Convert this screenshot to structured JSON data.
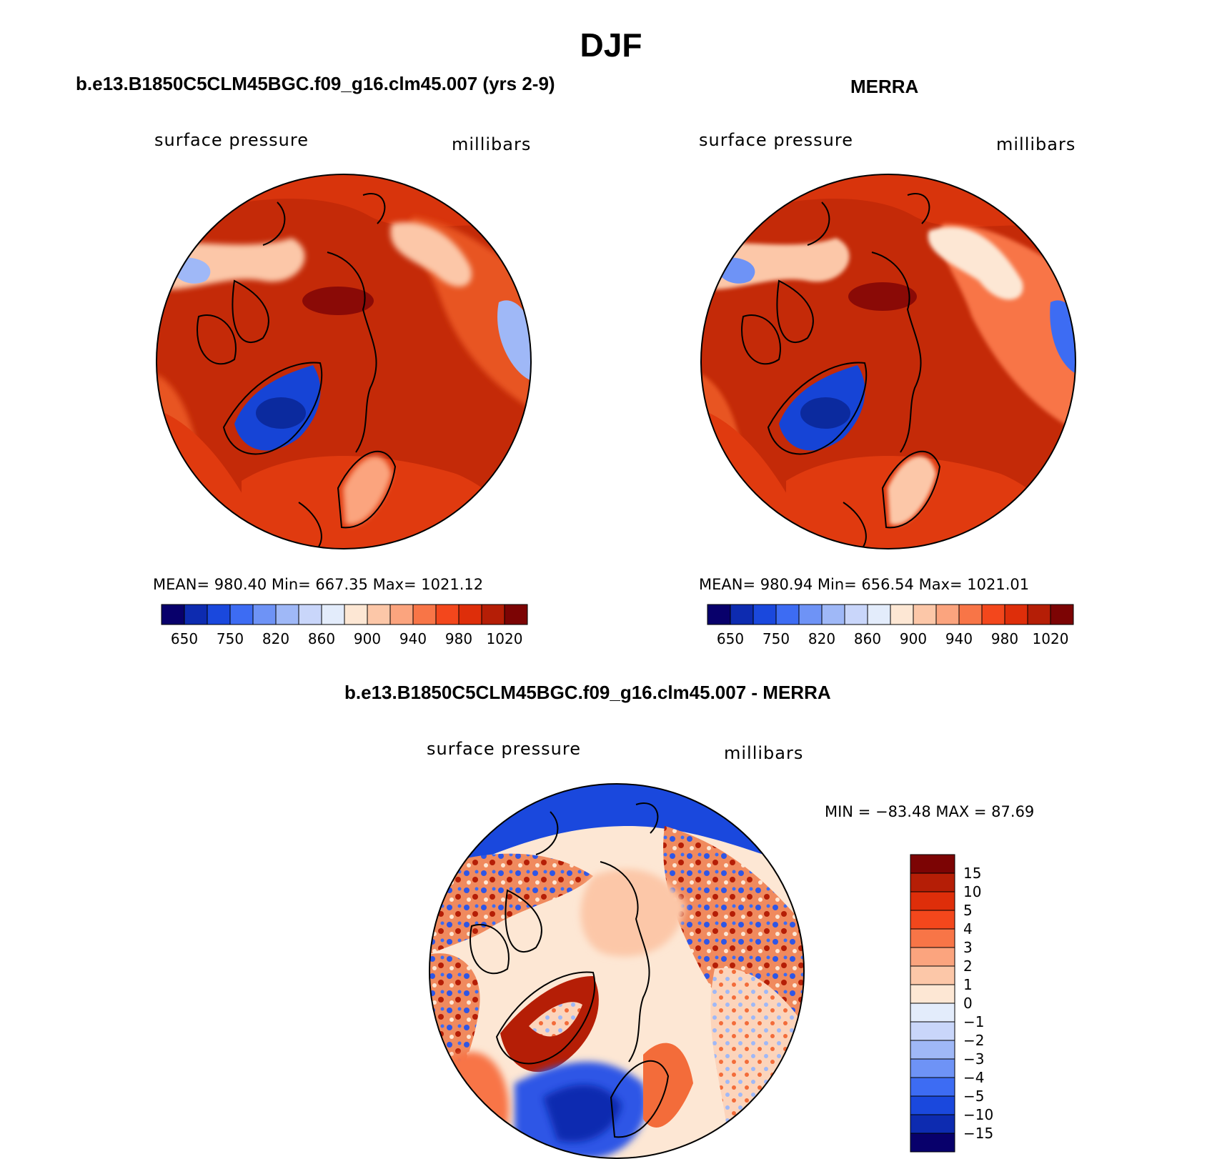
{
  "figure": {
    "title": "DJF",
    "panels": [
      {
        "title": "b.e13.B1850C5CLM45BGC.f09_g16.clm45.007 (yrs 2-9)",
        "left_label": "surface pressure",
        "right_label": "millibars",
        "stats": "MEAN= 980.40   Min= 667.35   Max= 1021.12"
      },
      {
        "title": "MERRA",
        "left_label": "surface pressure",
        "right_label": "millibars",
        "stats": "MEAN= 980.94   Min= 656.54   Max= 1021.01"
      },
      {
        "title": "b.e13.B1850C5CLM45BGC.f09_g16.clm45.007 - MERRA",
        "left_label": "surface pressure",
        "right_label": "millibars",
        "stats": "MIN = −83.48 MAX =   87.69"
      }
    ],
    "abs_colorbar": {
      "colors": [
        "#08006b",
        "#0d2bb0",
        "#1a48dd",
        "#3d6cf3",
        "#6e93f6",
        "#9fb8f7",
        "#c9d6fa",
        "#e3ecfb",
        "#fde7d4",
        "#fcc7a8",
        "#fba47e",
        "#f87547",
        "#f3471c",
        "#de2e0a",
        "#b51e06",
        "#7c0404"
      ],
      "tick_labels": [
        "650",
        "750",
        "820",
        "860",
        "900",
        "940",
        "980",
        "1020"
      ]
    },
    "diff_colorbar": {
      "colors": [
        "#7c0404",
        "#b51e06",
        "#de2e0a",
        "#f3471c",
        "#f87547",
        "#fba47e",
        "#fcc7a8",
        "#fde7d4",
        "#e3ecfb",
        "#c9d6fa",
        "#9fb8f7",
        "#6e93f6",
        "#3d6cf3",
        "#1a48dd",
        "#0d2bb0",
        "#08006b"
      ],
      "tick_labels": [
        "15",
        "10",
        "5",
        "4",
        "3",
        "2",
        "1",
        "0",
        "−1",
        "−2",
        "−3",
        "−4",
        "−5",
        "−10",
        "−15"
      ]
    },
    "map_colors": {
      "background_high": "#c42a08",
      "background_mid": "#e03a0f",
      "pole_max": "#8a0a06",
      "greenland_low": "#1644d6",
      "greenland_core": "#0b2a9e",
      "mountain_light": "#fcc7a8",
      "diff_neutral": "#fde7d4",
      "diff_positive": "#f36c3a",
      "diff_negative": "#2e56e6"
    }
  }
}
